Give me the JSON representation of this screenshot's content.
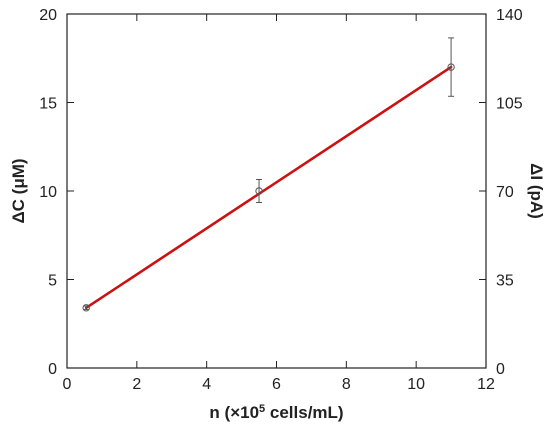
{
  "chart_data": {
    "type": "scatter",
    "xlabel": {
      "prefix": "n (",
      "times": "×",
      "base": "10",
      "exponent": "5",
      "suffix": " cells/mL)"
    },
    "ylabel_left": "ΔC (μM)",
    "ylabel_right": "ΔI (pA)",
    "xlim": [
      0,
      12
    ],
    "ylim_left": [
      0,
      20
    ],
    "ylim_right": [
      0,
      140
    ],
    "x_ticks": [
      "0",
      "2",
      "4",
      "6",
      "8",
      "10",
      "12"
    ],
    "y_left_ticks": [
      "0",
      "5",
      "10",
      "15",
      "20"
    ],
    "y_right_ticks": [
      "0",
      "35",
      "70",
      "105",
      "140"
    ],
    "points": [
      {
        "x": 0.55,
        "y": 3.4,
        "err": 0.1
      },
      {
        "x": 5.5,
        "y": 10.0,
        "err": 0.65
      },
      {
        "x": 11.0,
        "y": 17.0,
        "err": 1.65
      }
    ],
    "fit_line": {
      "x": [
        0.55,
        11.0
      ],
      "y": [
        3.4,
        17.0
      ]
    },
    "colors": {
      "fit": "#cc1111",
      "markers": "#555555",
      "axes": "#222222"
    },
    "grid": false
  }
}
